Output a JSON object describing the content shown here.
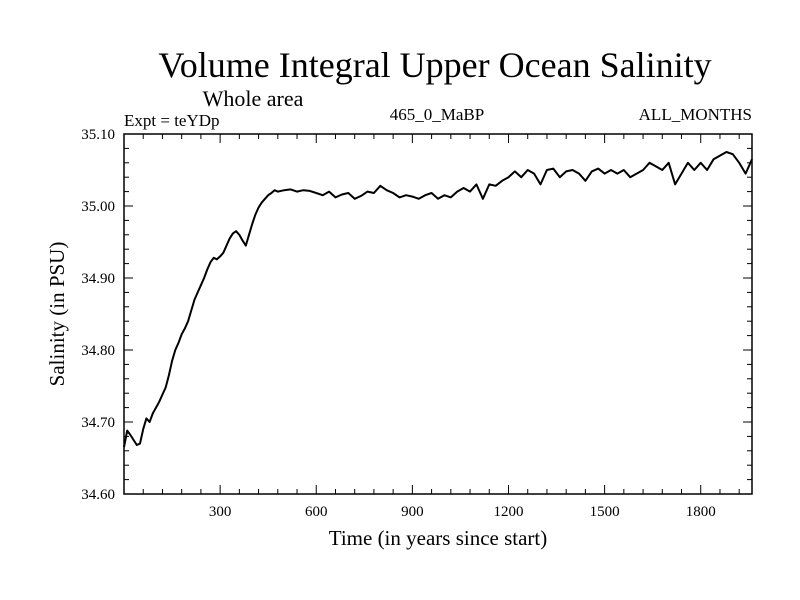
{
  "chart_data": {
    "type": "line",
    "title": "Volume Integral Upper Ocean Salinity",
    "subtitle": "Whole area",
    "experiment": "Expt = teYDp",
    "case_label": "465_0_MaBP",
    "months_label": "ALL_MONTHS",
    "xlabel": "Time (in years since start)",
    "ylabel": "Salinity (in PSU)",
    "xlim": [
      0,
      1960
    ],
    "ylim": [
      34.6,
      35.1
    ],
    "x_ticks": [
      300,
      600,
      900,
      1200,
      1500,
      1800
    ],
    "x_tick_labels": [
      "300",
      "600",
      "900",
      "1200",
      "1500",
      "1800"
    ],
    "y_ticks": [
      34.6,
      34.7,
      34.8,
      34.9,
      35.0,
      35.1
    ],
    "y_tick_labels": [
      "34.60",
      "34.70",
      "34.80",
      "34.90",
      "35.00",
      "35.10"
    ],
    "grid": false,
    "series": [
      {
        "name": "Salinity",
        "color": "#000000",
        "x": [
          0,
          10,
          20,
          30,
          40,
          50,
          60,
          70,
          80,
          90,
          100,
          110,
          120,
          130,
          140,
          150,
          160,
          170,
          180,
          190,
          200,
          210,
          220,
          230,
          240,
          250,
          260,
          270,
          280,
          290,
          300,
          310,
          320,
          330,
          340,
          350,
          360,
          370,
          380,
          390,
          400,
          410,
          420,
          430,
          440,
          450,
          460,
          470,
          480,
          500,
          520,
          540,
          560,
          580,
          600,
          620,
          640,
          660,
          680,
          700,
          720,
          740,
          760,
          780,
          800,
          820,
          840,
          860,
          880,
          900,
          920,
          940,
          960,
          980,
          1000,
          1020,
          1040,
          1060,
          1080,
          1100,
          1120,
          1140,
          1160,
          1180,
          1200,
          1220,
          1240,
          1260,
          1280,
          1300,
          1320,
          1340,
          1360,
          1380,
          1400,
          1420,
          1440,
          1460,
          1480,
          1500,
          1520,
          1540,
          1560,
          1580,
          1600,
          1620,
          1640,
          1660,
          1680,
          1700,
          1720,
          1740,
          1760,
          1780,
          1800,
          1820,
          1840,
          1860,
          1880,
          1900,
          1920,
          1940,
          1960
        ],
        "y": [
          34.665,
          34.688,
          34.682,
          34.675,
          34.668,
          34.67,
          34.69,
          34.705,
          34.7,
          34.712,
          34.72,
          34.728,
          34.738,
          34.748,
          34.765,
          34.785,
          34.8,
          34.81,
          34.822,
          34.83,
          34.84,
          34.855,
          34.87,
          34.88,
          34.89,
          34.9,
          34.912,
          34.922,
          34.928,
          34.926,
          34.93,
          34.935,
          34.945,
          34.955,
          34.962,
          34.965,
          34.96,
          34.952,
          34.945,
          34.96,
          34.975,
          34.988,
          34.998,
          35.005,
          35.01,
          35.015,
          35.018,
          35.022,
          35.02,
          35.022,
          35.023,
          35.02,
          35.022,
          35.021,
          35.018,
          35.015,
          35.02,
          35.012,
          35.016,
          35.018,
          35.01,
          35.014,
          35.02,
          35.018,
          35.028,
          35.022,
          35.018,
          35.012,
          35.015,
          35.013,
          35.01,
          35.015,
          35.018,
          35.01,
          35.015,
          35.012,
          35.02,
          35.025,
          35.02,
          35.03,
          35.01,
          35.03,
          35.028,
          35.035,
          35.04,
          35.048,
          35.04,
          35.05,
          35.045,
          35.03,
          35.05,
          35.052,
          35.04,
          35.048,
          35.05,
          35.045,
          35.035,
          35.048,
          35.052,
          35.045,
          35.05,
          35.045,
          35.05,
          35.04,
          35.045,
          35.05,
          35.06,
          35.055,
          35.05,
          35.06,
          35.03,
          35.045,
          35.06,
          35.05,
          35.06,
          35.05,
          35.065,
          35.07,
          35.075,
          35.072,
          35.06,
          35.045,
          35.065
        ]
      }
    ]
  }
}
